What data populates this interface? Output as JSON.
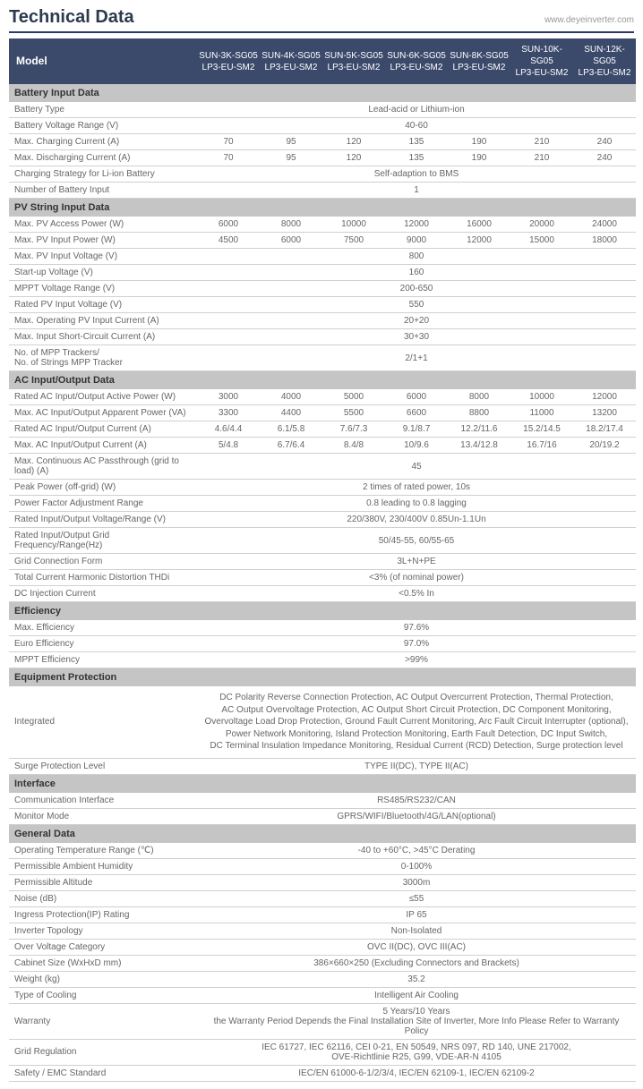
{
  "header": {
    "title": "Technical Data",
    "url": "www.deyeinverter.com"
  },
  "colors": {
    "header_bg": "#3b4a6b",
    "section_bg": "#c5c5c5",
    "border": "#d0d0d0",
    "text": "#666666",
    "title": "#2b3a4e"
  },
  "model_label": "Model",
  "models": [
    {
      "top": "SUN-3K-SG05",
      "bottom": "LP3-EU-SM2"
    },
    {
      "top": "SUN-4K-SG05",
      "bottom": "LP3-EU-SM2"
    },
    {
      "top": "SUN-5K-SG05",
      "bottom": "LP3-EU-SM2"
    },
    {
      "top": "SUN-6K-SG05",
      "bottom": "LP3-EU-SM2"
    },
    {
      "top": "SUN-8K-SG05",
      "bottom": "LP3-EU-SM2"
    },
    {
      "top": "SUN-10K-SG05",
      "bottom": "LP3-EU-SM2"
    },
    {
      "top": "SUN-12K-SG05",
      "bottom": "LP3-EU-SM2"
    }
  ],
  "sections": [
    {
      "title": "Battery Input Data",
      "rows": [
        {
          "label": "Battery Type",
          "span": "Lead-acid or Lithium-ion"
        },
        {
          "label": "Battery Voltage Range (V)",
          "span": "40-60"
        },
        {
          "label": "Max. Charging Current (A)",
          "cells": [
            "70",
            "95",
            "120",
            "135",
            "190",
            "210",
            "240"
          ]
        },
        {
          "label": "Max. Discharging Current (A)",
          "cells": [
            "70",
            "95",
            "120",
            "135",
            "190",
            "210",
            "240"
          ]
        },
        {
          "label": "Charging Strategy for Li-ion Battery",
          "span": "Self-adaption to BMS"
        },
        {
          "label": "Number of Battery Input",
          "span": "1"
        }
      ]
    },
    {
      "title": "PV String Input Data",
      "rows": [
        {
          "label": "Max. PV Access Power (W)",
          "cells": [
            "6000",
            "8000",
            "10000",
            "12000",
            "16000",
            "20000",
            "24000"
          ]
        },
        {
          "label": "Max. PV Input Power (W)",
          "cells": [
            "4500",
            "6000",
            "7500",
            "9000",
            "12000",
            "15000",
            "18000"
          ]
        },
        {
          "label": "Max. PV Input Voltage (V)",
          "span": "800"
        },
        {
          "label": "Start-up Voltage (V)",
          "span": "160"
        },
        {
          "label": "MPPT Voltage Range (V)",
          "span": "200-650"
        },
        {
          "label": "Rated PV Input Voltage (V)",
          "span": "550"
        },
        {
          "label": "Max. Operating PV Input Current (A)",
          "span": "20+20"
        },
        {
          "label": "Max. Input Short-Circuit Current (A)",
          "span": "30+30"
        },
        {
          "label": "No. of MPP Trackers/\nNo. of Strings MPP Tracker",
          "span": "2/1+1"
        }
      ]
    },
    {
      "title": "AC Input/Output Data",
      "rows": [
        {
          "label": "Rated AC Input/Output Active Power (W)",
          "cells": [
            "3000",
            "4000",
            "5000",
            "6000",
            "8000",
            "10000",
            "12000"
          ]
        },
        {
          "label": "Max. AC Input/Output Apparent Power (VA)",
          "cells": [
            "3300",
            "4400",
            "5500",
            "6600",
            "8800",
            "11000",
            "13200"
          ]
        },
        {
          "label": "Rated AC Input/Output Current (A)",
          "cells": [
            "4.6/4.4",
            "6.1/5.8",
            "7.6/7.3",
            "9.1/8.7",
            "12.2/11.6",
            "15.2/14.5",
            "18.2/17.4"
          ]
        },
        {
          "label": "Max. AC Input/Output Current (A)",
          "cells": [
            "5/4.8",
            "6.7/6.4",
            "8.4/8",
            "10/9.6",
            "13.4/12.8",
            "16.7/16",
            "20/19.2"
          ]
        },
        {
          "label": "Max. Continuous AC Passthrough (grid to load) (A)",
          "span": "45"
        },
        {
          "label": "Peak Power (off-grid) (W)",
          "span": "2 times of rated power, 10s"
        },
        {
          "label": "Power Factor Adjustment Range",
          "span": "0.8 leading to 0.8 lagging"
        },
        {
          "label": "Rated Input/Output Voltage/Range (V)",
          "span": "220/380V, 230/400V  0.85Un-1.1Un"
        },
        {
          "label": "Rated Input/Output Grid Frequency/Range(Hz)",
          "span": "50/45-55,  60/55-65"
        },
        {
          "label": "Grid Connection Form",
          "span": "3L+N+PE"
        },
        {
          "label": "Total Current Harmonic Distortion THDi",
          "span": "<3% (of nominal power)"
        },
        {
          "label": "DC Injection Current",
          "span": "<0.5% In"
        }
      ]
    },
    {
      "title": "Efficiency",
      "rows": [
        {
          "label": "Max. Efficiency",
          "span": "97.6%"
        },
        {
          "label": "Euro Efficiency",
          "span": "97.0%"
        },
        {
          "label": "MPPT Efficiency",
          "span": ">99%"
        }
      ]
    },
    {
      "title": "Equipment Protection",
      "rows": [
        {
          "label": "Integrated",
          "span": "DC Polarity Reverse Connection Protection, AC Output Overcurrent Protection, Thermal Protection,\nAC Output Overvoltage Protection, AC Output Short Circuit Protection, DC Component Monitoring,\nOvervoltage Load Drop Protection, Ground Fault Current Monitoring, Arc Fault Circuit Interrupter (optional),\nPower Network Monitoring, Island Protection Monitoring, Earth Fault Detection, DC Input Switch,\nDC Terminal Insulation Impedance Monitoring, Residual Current (RCD) Detection, Surge protection level",
          "integrated": true
        },
        {
          "label": "Surge Protection Level",
          "span": "TYPE II(DC), TYPE II(AC)"
        }
      ]
    },
    {
      "title": "Interface",
      "rows": [
        {
          "label": "Communication Interface",
          "span": "RS485/RS232/CAN"
        },
        {
          "label": "Monitor Mode",
          "span": "GPRS/WIFI/Bluetooth/4G/LAN(optional)"
        }
      ]
    },
    {
      "title": "General Data",
      "rows": [
        {
          "label": "Operating Temperature Range (℃)",
          "span": "-40 to +60°C, >45°C Derating"
        },
        {
          "label": "Permissible Ambient Humidity",
          "span": "0-100%"
        },
        {
          "label": "Permissible Altitude",
          "span": "3000m"
        },
        {
          "label": "Noise (dB)",
          "span": "≤55"
        },
        {
          "label": "Ingress Protection(IP) Rating",
          "span": "IP 65"
        },
        {
          "label": "Inverter Topology",
          "span": "Non-Isolated"
        },
        {
          "label": "Over Voltage Category",
          "span": "OVC II(DC), OVC III(AC)"
        },
        {
          "label": "Cabinet Size (WxHxD mm)",
          "span": "386×660×250 (Excluding Connectors and Brackets)"
        },
        {
          "label": "Weight (kg)",
          "span": "35.2"
        },
        {
          "label": "Type of Cooling",
          "span": "Intelligent Air Cooling"
        },
        {
          "label": "Warranty",
          "span": "5 Years/10 Years\nthe Warranty Period Depends the Final Installation Site of Inverter, More Info Please Refer to Warranty Policy"
        },
        {
          "label": "Grid Regulation",
          "span": "IEC 61727, IEC 62116, CEI 0-21, EN 50549, NRS 097, RD 140, UNE 217002,\nOVE-Richtlinie R25, G99, VDE-AR-N 4105"
        },
        {
          "label": "Safety / EMC Standard",
          "span": "IEC/EN 61000-6-1/2/3/4, IEC/EN 62109-1, IEC/EN 62109-2"
        }
      ]
    }
  ]
}
